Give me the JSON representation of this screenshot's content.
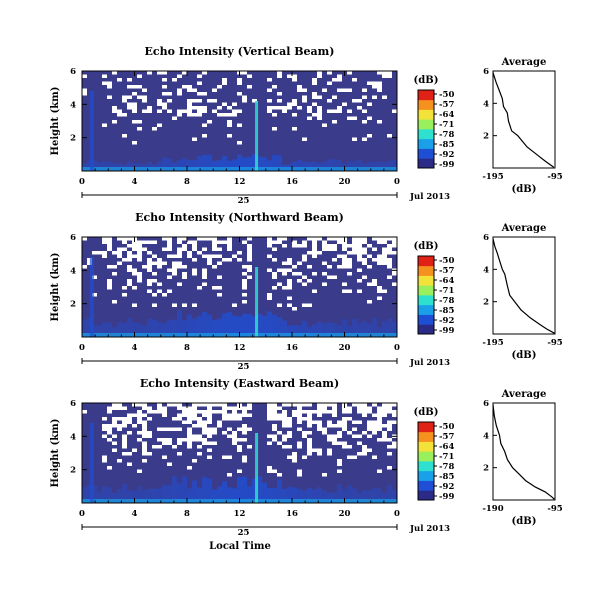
{
  "figure": {
    "xlabel": "Local Time",
    "date_label": "Jul 2013",
    "date_day": "25",
    "colorbar_unit": "(dB)",
    "colorbar_ticks": [
      "-50",
      "-57",
      "-64",
      "-71",
      "-78",
      "-85",
      "-92",
      "-99"
    ],
    "colors": {
      "background": "#3b3b8c",
      "colormap": [
        "#2b2b87",
        "#1f4fd4",
        "#1aa0e8",
        "#2ee0d0",
        "#9af05c",
        "#f2e23a",
        "#f5911f",
        "#e02216"
      ]
    }
  },
  "chart_data": [
    {
      "type": "heatmap",
      "title": "Echo Intensity (Vertical Beam)",
      "ylabel": "Height (km)",
      "xlim": [
        0,
        24
      ],
      "ylim": [
        0,
        6
      ],
      "xticks": [
        "0",
        "4",
        "8",
        "12",
        "16",
        "20",
        "0"
      ],
      "yticks": [
        "6",
        "4",
        "2"
      ],
      "colorbar": {
        "unit": "(dB)",
        "min": -99,
        "max": -50
      },
      "features": "Background near -99 dB; enhanced echo below ~0.5 km; vertical spike near 13.3 h; white gaps (no data) mostly above 3 km",
      "average": {
        "title": "Average",
        "xlabel": "(dB)",
        "xticks": [
          "-195",
          "-95"
        ],
        "yticks": [
          "6",
          "4",
          "2"
        ],
        "x": [
          -195,
          -95
        ],
        "y": [
          0,
          6
        ],
        "profile": [
          [
            -195,
            5.9
          ],
          [
            -190,
            5.3
          ],
          [
            -185,
            4.8
          ],
          [
            -180,
            4.3
          ],
          [
            -178,
            3.8
          ],
          [
            -172,
            3.4
          ],
          [
            -170,
            2.9
          ],
          [
            -165,
            2.3
          ],
          [
            -155,
            2.0
          ],
          [
            -140,
            1.3
          ],
          [
            -130,
            1.0
          ],
          [
            -120,
            0.7
          ],
          [
            -110,
            0.4
          ],
          [
            -97,
            0.05
          ]
        ]
      }
    },
    {
      "type": "heatmap",
      "title": "Echo Intensity (Northward Beam)",
      "ylabel": "Height (km)",
      "xlim": [
        0,
        24
      ],
      "ylim": [
        0,
        6
      ],
      "xticks": [
        "0",
        "4",
        "8",
        "12",
        "16",
        "20",
        "0"
      ],
      "yticks": [
        "6",
        "4",
        "2"
      ],
      "colorbar": {
        "unit": "(dB)",
        "min": -99,
        "max": -50
      },
      "features": "Background near -99 dB; enhanced echo below ~0.8 km; vertical spike near 13.3 h; large white no-data regions above ~2.5 km",
      "average": {
        "title": "Average",
        "xlabel": "(dB)",
        "xticks": [
          "-195",
          "-95"
        ],
        "yticks": [
          "6",
          "4",
          "2"
        ],
        "x": [
          -195,
          -95
        ],
        "y": [
          0,
          6
        ],
        "profile": [
          [
            -195,
            5.9
          ],
          [
            -192,
            5.4
          ],
          [
            -188,
            5.0
          ],
          [
            -184,
            4.5
          ],
          [
            -180,
            4.0
          ],
          [
            -176,
            3.7
          ],
          [
            -172,
            3.0
          ],
          [
            -168,
            2.4
          ],
          [
            -160,
            2.0
          ],
          [
            -150,
            1.5
          ],
          [
            -135,
            1.0
          ],
          [
            -120,
            0.6
          ],
          [
            -108,
            0.3
          ],
          [
            -96,
            0.05
          ]
        ]
      }
    },
    {
      "type": "heatmap",
      "title": "Echo Intensity (Eastward Beam)",
      "ylabel": "Height (km)",
      "xlim": [
        0,
        24
      ],
      "ylim": [
        0,
        6
      ],
      "xticks": [
        "0",
        "4",
        "8",
        "12",
        "16",
        "20",
        "0"
      ],
      "yticks": [
        "6",
        "4",
        "2"
      ],
      "colorbar": {
        "unit": "(dB)",
        "min": -99,
        "max": -50
      },
      "features": "Background near -99 dB; enhanced echo below ~0.8 km; vertical spike near 13.3 h; large white no-data regions above ~2 km",
      "average": {
        "title": "Average",
        "xlabel": "(dB)",
        "xticks": [
          "-190",
          "-95"
        ],
        "yticks": [
          "6",
          "4",
          "2"
        ],
        "x": [
          -190,
          -95
        ],
        "y": [
          0,
          6
        ],
        "profile": [
          [
            -190,
            5.9
          ],
          [
            -188,
            5.2
          ],
          [
            -185,
            4.6
          ],
          [
            -180,
            4.0
          ],
          [
            -178,
            3.5
          ],
          [
            -172,
            3.0
          ],
          [
            -168,
            2.5
          ],
          [
            -160,
            2.0
          ],
          [
            -150,
            1.6
          ],
          [
            -140,
            1.2
          ],
          [
            -125,
            0.8
          ],
          [
            -110,
            0.5
          ],
          [
            -100,
            0.2
          ],
          [
            -96,
            0.05
          ]
        ]
      }
    }
  ]
}
